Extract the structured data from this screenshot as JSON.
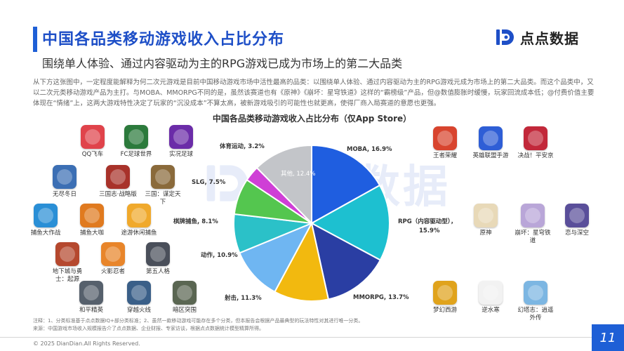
{
  "header": {
    "title": "中国各品类移动游戏收入占比分布",
    "subtitle": "围绕单人体验、通过内容驱动为主的RPG游戏已成为市场上的第二大品类",
    "brand": "点点数据",
    "brand_color": "#1e4fc7"
  },
  "intro_text": "从下方这张图中，一定程度能解释为何二次元游戏是目前中国移动游戏市场中活性最高的品类：以围绕单人体验、通过内容驱动为主的RPG游戏元成为市场上的第二大品类。而这个品类中，又以二次元类移动游戏产品为主打。与MOBA、MMORPG不同的是，虽然该赛道也有《原神》《崩坏：星穹铁道》这样的“霸榜级”产品，但@数值膨胀时缓慢，玩家回流成本低；@付费价值主要体现在“情绪”上，这两大游戏特性决定了玩家的“沉没成本”不算太高，被新游戏吸引的可能性也就更高，使得厂商入局赛道的意愿也更强。",
  "chart_data": {
    "type": "pie",
    "title": "中国各品类移动游戏收入占比分布（仅App Store）",
    "unit": "%",
    "series": [
      {
        "name": "MOBA",
        "label": "MOBA, 16.9%",
        "value": 16.9,
        "color": "#1f5ee0"
      },
      {
        "name": "RPG（内容驱动型）",
        "label": "RPG（内容驱动型），15.9%",
        "value": 15.9,
        "color": "#1dc0d0"
      },
      {
        "name": "MMORPG",
        "label": "MMORPG, 13.7%",
        "value": 13.7,
        "color": "#2a3ea3"
      },
      {
        "name": "射击",
        "label": "射击, 11.3%",
        "value": 11.3,
        "color": "#f2b90f"
      },
      {
        "name": "动作",
        "label": "动作, 10.9%",
        "value": 10.9,
        "color": "#6fb6f2"
      },
      {
        "name": "棋牌捕鱼",
        "label": "棋牌捕鱼, 8.1%",
        "value": 8.1,
        "color": "#2bc1c8"
      },
      {
        "name": "SLG",
        "label": "SLG, 7.5%",
        "value": 7.5,
        "color": "#54c64f"
      },
      {
        "name": "体育运动",
        "label": "体育运动, 3.2%",
        "value": 3.2,
        "color": "#cf3fd6"
      },
      {
        "name": "其他",
        "label": "其他, 12.4%",
        "value": 12.4,
        "color": "#c3c5c9"
      }
    ]
  },
  "left_apps": [
    {
      "name": "QQ飞车",
      "color": "#e0434b"
    },
    {
      "name": "FC足球世界",
      "color": "#2c7a3c"
    },
    {
      "name": "实况足球",
      "color": "#6b2ca8"
    },
    {
      "name": "无尽冬日",
      "color": "#3c6fb4"
    },
    {
      "name": "三国志·战略版",
      "color": "#a8322a"
    },
    {
      "name": "三国：谋定天下",
      "color": "#8a6a3b"
    },
    {
      "name": "SLG, 7.5%",
      "skip": true
    },
    {
      "name": "捕鱼大作战",
      "color": "#2a8fd6"
    },
    {
      "name": "捕鱼大咖",
      "color": "#e07a1f"
    },
    {
      "name": "途游休闲捕鱼",
      "color": "#f0a92c"
    },
    {
      "name": "地下城与勇士：起源",
      "color": "#b5482e"
    },
    {
      "name": "火影忍者",
      "color": "#e8852a"
    },
    {
      "name": "第五人格",
      "color": "#4a4f5a"
    },
    {
      "name": "和平精英",
      "color": "#56606c"
    },
    {
      "name": "穿越火线",
      "color": "#3a5f88"
    },
    {
      "name": "暗区突围",
      "color": "#5a6652"
    }
  ],
  "right_apps": [
    {
      "name": "王者荣耀",
      "color": "#d8442e"
    },
    {
      "name": "英雄联盟手游",
      "color": "#2e5ed6"
    },
    {
      "name": "决战！平安京",
      "color": "#c2283a"
    },
    {
      "name": "原神",
      "color": "#e8d9b8"
    },
    {
      "name": "崩坏：星穹铁道",
      "color": "#b9a6d8"
    },
    {
      "name": "恋与深空",
      "color": "#5a4f9a"
    },
    {
      "name": "梦幻西游",
      "color": "#e0a31c"
    },
    {
      "name": "逆水寒",
      "color": "#f2f2f2"
    },
    {
      "name": "幻塔志：逍遥外传",
      "color": "#7cb6e2"
    }
  ],
  "notes": {
    "line1": "注释：1、分类标准基于点点数据IQ+部分类标准；2、虽然一款移动游戏可能存在多个分类，但本报告会根据产品最典型的玩法特性对其进行唯一分类。",
    "line2": "来源：中国游戏市场收入规模报告介了点点数据、企业财报、专家访谈，根据点点数据统计模型精算所得。"
  },
  "footer": {
    "copyright": "© 2025 DianDian.All Rights Reserved.",
    "page": "11"
  }
}
